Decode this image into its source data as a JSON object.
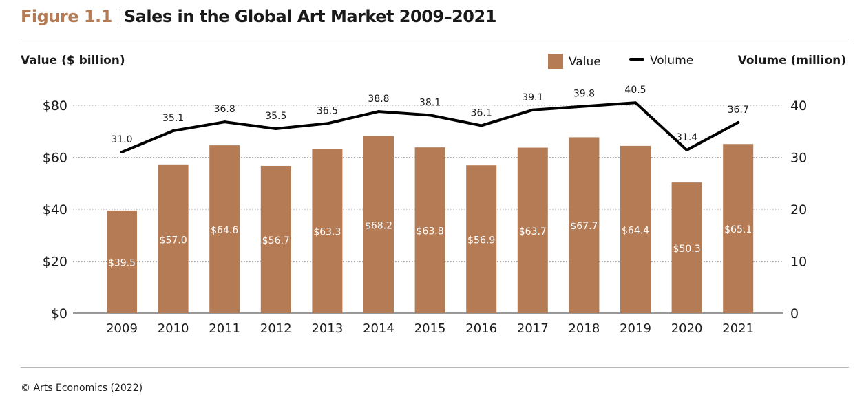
{
  "figure": {
    "label": "Figure 1.1",
    "title": "Sales in the Global Art Market 2009–2021"
  },
  "axes": {
    "left_title": "Value ($ billion)",
    "right_title": "Volume (million)"
  },
  "legend": {
    "value_label": "Value",
    "volume_label": "Volume"
  },
  "source": "© Arts Economics (2022)",
  "colors": {
    "bar": "#b47b55",
    "line": "#000000",
    "accent": "#b47b55"
  },
  "chart_data": {
    "type": "bar",
    "title": "Sales in the Global Art Market 2009–2021",
    "categories": [
      "2009",
      "2010",
      "2011",
      "2012",
      "2013",
      "2014",
      "2015",
      "2016",
      "2017",
      "2018",
      "2019",
      "2020",
      "2021"
    ],
    "series": [
      {
        "name": "Value",
        "type": "bar",
        "axis": "left",
        "values": [
          39.5,
          57.0,
          64.6,
          56.7,
          63.3,
          68.2,
          63.8,
          56.9,
          63.7,
          67.7,
          64.4,
          50.3,
          65.1
        ],
        "labels": [
          "$39.5",
          "$57.0",
          "$64.6",
          "$56.7",
          "$63.3",
          "$68.2",
          "$63.8",
          "$56.9",
          "$63.7",
          "$67.7",
          "$64.4",
          "$50.3",
          "$65.1"
        ]
      },
      {
        "name": "Volume",
        "type": "line",
        "axis": "right",
        "values": [
          31.0,
          35.1,
          36.8,
          35.5,
          36.5,
          38.8,
          38.1,
          36.1,
          39.1,
          39.8,
          40.5,
          31.4,
          36.7
        ],
        "labels": [
          "31.0",
          "35.1",
          "36.8",
          "35.5",
          "36.5",
          "38.8",
          "38.1",
          "36.1",
          "39.1",
          "39.8",
          "40.5",
          "31.4",
          "36.7"
        ]
      }
    ],
    "ylabel": "Value ($ billion)",
    "y2label": "Volume (million)",
    "ylim": [
      0,
      80
    ],
    "y2lim": [
      0,
      40
    ],
    "yticks": [
      "$0",
      "$20",
      "$40",
      "$60",
      "$80"
    ],
    "y2ticks": [
      "0",
      "10",
      "20",
      "30",
      "40"
    ],
    "grid": "dotted horizontal",
    "legend_position": "top-right"
  }
}
